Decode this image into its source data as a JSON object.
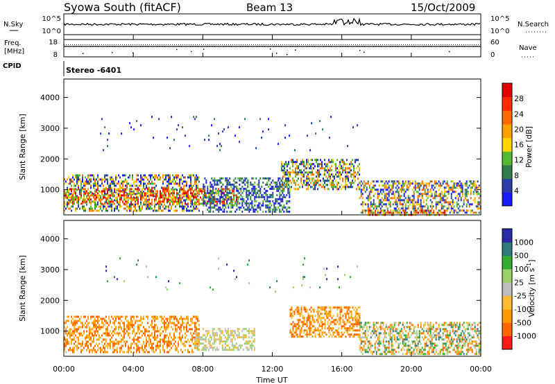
{
  "header": {
    "station": "Syowa South (fitACF)",
    "beam": "Beam 13",
    "date": "15/Oct/2009"
  },
  "panels": {
    "nsky": {
      "label": "N.Sky",
      "right_label": "N.Search",
      "left_ticks": [
        "10^5",
        "10^0"
      ],
      "right_ticks": [
        "10^5",
        "10^0"
      ]
    },
    "freq": {
      "label_line1": "Freq.",
      "label_line2": "[MHz]",
      "left_ticks": [
        "18",
        "8"
      ],
      "right_ticks": [
        "60",
        "0"
      ],
      "right_label": "Nave"
    },
    "cpid": {
      "label": "CPID",
      "value": "Stereo  -6401"
    }
  },
  "colors": {
    "power_scale": [
      "#1a1aff",
      "#2b3ea8",
      "#2e7a4a",
      "#55b833",
      "#ffd400",
      "#ffa000",
      "#ff6a00",
      "#ff2a00",
      "#e00000"
    ],
    "velocity_scale": [
      "#ff1a1a",
      "#ff6600",
      "#ff9900",
      "#ffbb33",
      "#bdbdbd",
      "#9ad06a",
      "#33aa33",
      "#2e7a7a",
      "#2a2aa8"
    ]
  },
  "chart_data": [
    {
      "type": "heatmap",
      "title": "Power",
      "xlabel": "",
      "ylabel": "Slant Range [km]",
      "xlim": [
        0,
        24
      ],
      "ylim": [
        180,
        4600
      ],
      "y_ticks": [
        "1000",
        "2000",
        "3000",
        "4000"
      ],
      "y_tick_values": [
        1000,
        2000,
        3000,
        4000
      ],
      "colorbar": {
        "label": "Power [dB]",
        "range": [
          0,
          32
        ],
        "ticks": [
          "4",
          "8",
          "12",
          "16",
          "20",
          "24",
          "28"
        ],
        "tick_values": [
          4,
          8,
          12,
          16,
          20,
          24,
          28
        ]
      },
      "echo_regions": [
        {
          "t_start": 0.0,
          "t_end": 7.8,
          "r_start": 300,
          "r_end": 1500,
          "level": "mid"
        },
        {
          "t_start": 0.0,
          "t_end": 10.0,
          "r_start": 550,
          "r_end": 1050,
          "level": "high"
        },
        {
          "t_start": 8.0,
          "t_end": 13.0,
          "r_start": 300,
          "r_end": 1400,
          "level": "low"
        },
        {
          "t_start": 12.5,
          "t_end": 17.0,
          "r_start": 1000,
          "r_end": 2000,
          "level": "mid"
        },
        {
          "t_start": 17.0,
          "t_end": 24.0,
          "r_start": 250,
          "r_end": 1300,
          "level": "mid"
        },
        {
          "t_start": 17.5,
          "t_end": 22.0,
          "r_start": 180,
          "r_end": 350,
          "level": "high"
        },
        {
          "t_start": 2.0,
          "t_end": 17.0,
          "r_start": 2300,
          "r_end": 3400,
          "level": "sparse"
        }
      ]
    },
    {
      "type": "heatmap",
      "title": "Velocity",
      "xlabel": "Time UT",
      "ylabel": "Slant Range [km]",
      "xlim": [
        0,
        24
      ],
      "ylim": [
        180,
        4600
      ],
      "x_ticks": [
        "00:00",
        "04:00",
        "08:00",
        "12:00",
        "16:00",
        "20:00",
        "00:00"
      ],
      "x_tick_values": [
        0,
        4,
        8,
        12,
        16,
        20,
        24
      ],
      "y_ticks": [
        "1000",
        "2000",
        "3000",
        "4000"
      ],
      "y_tick_values": [
        1000,
        2000,
        3000,
        4000
      ],
      "colorbar": {
        "label": "Velocity [m s",
        "label_sup": "-1",
        "label_end": "]",
        "ticks": [
          "1000",
          "500",
          "100",
          "25",
          "-25",
          "-100",
          "-500",
          "-1000"
        ]
      },
      "echo_regions": [
        {
          "t_start": 0.0,
          "t_end": 7.8,
          "r_start": 300,
          "r_end": 1500,
          "level": "negative"
        },
        {
          "t_start": 7.5,
          "t_end": 11.0,
          "r_start": 400,
          "r_end": 1100,
          "level": "near_zero"
        },
        {
          "t_start": 13.0,
          "t_end": 17.0,
          "r_start": 800,
          "r_end": 1800,
          "level": "negative"
        },
        {
          "t_start": 17.0,
          "t_end": 24.0,
          "r_start": 250,
          "r_end": 1300,
          "level": "mixed"
        },
        {
          "t_start": 2.0,
          "t_end": 17.0,
          "r_start": 2300,
          "r_end": 3400,
          "level": "sparse"
        }
      ]
    }
  ]
}
